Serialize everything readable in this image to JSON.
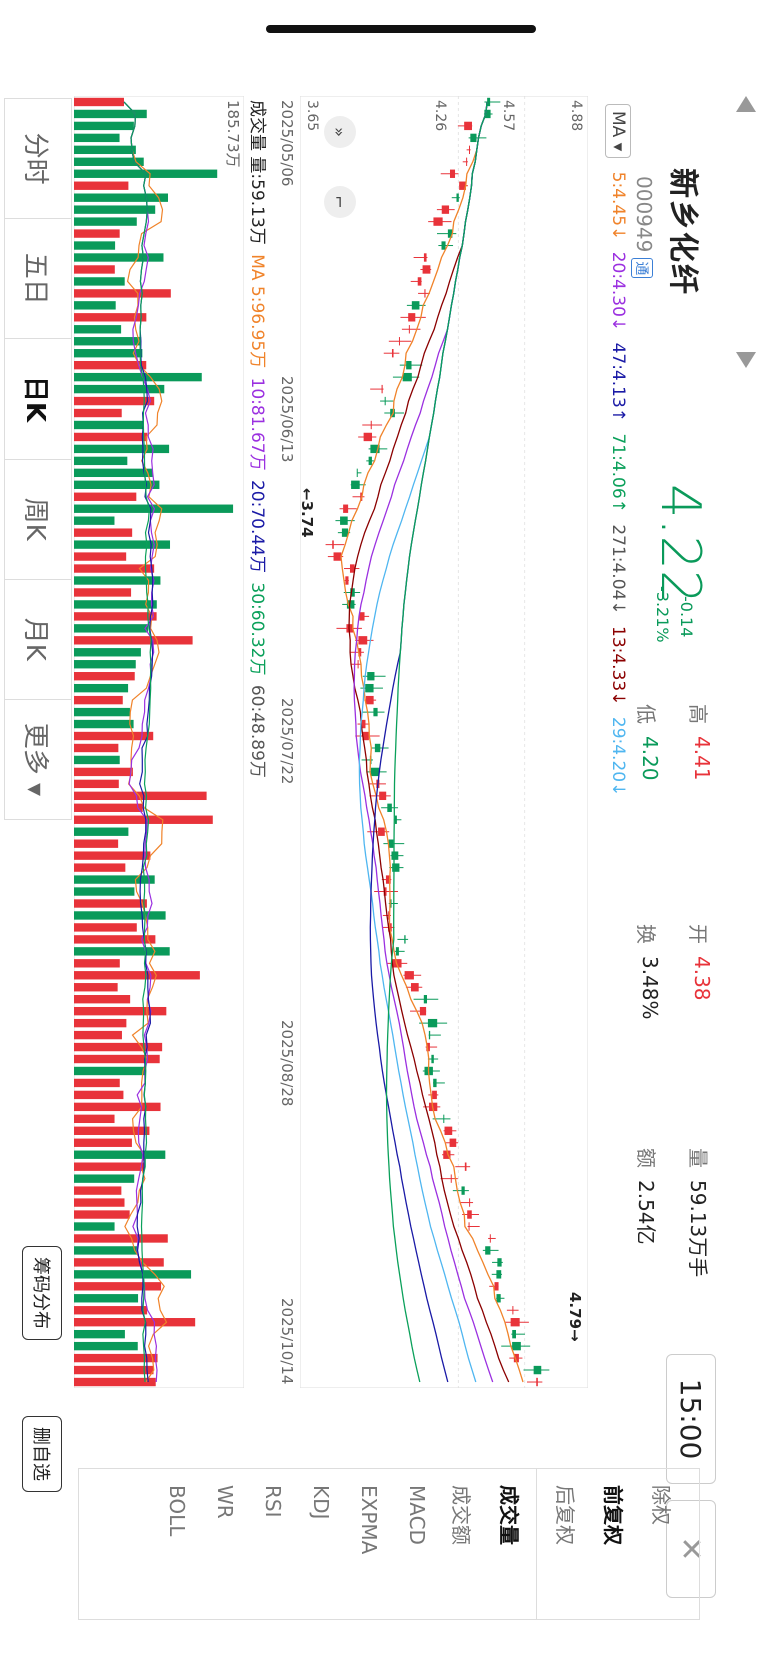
{
  "header": {
    "name": "新乡化纤",
    "code": "000949",
    "tong_badge": "通",
    "price": "4.22",
    "change": "-0.14",
    "change_pct": "-3.21%",
    "high_label": "高",
    "high": "4.41",
    "low_label": "低",
    "low": "4.20",
    "open_label": "开",
    "open": "4.38",
    "turnover_label": "换",
    "turnover": "3.48%",
    "volume_label": "量",
    "volume": "59.13万手",
    "amount_label": "额",
    "amount": "2.54亿",
    "time": "15:00"
  },
  "colors": {
    "up": "#e8333a",
    "down": "#0a9a5a",
    "ma5": "#f0832a",
    "ma20": "#9b30e0",
    "ma47": "#1a1aa6",
    "ma71": "#0aa05a",
    "ma271": "#555555",
    "ma13": "#8b0000",
    "ma29": "#4fb6f0"
  },
  "ma_legend": {
    "ma_button": "MA",
    "ma5": "5:4.45↓",
    "ma20": "20:4.30↓",
    "ma47": "47:4.13↑",
    "ma71": "71:4.06↑",
    "ma271": "271:4.04↓",
    "ma13": "13:4.33↓",
    "ma29": "29:4.20↓"
  },
  "vol_legend": {
    "label": "成交量",
    "vol": "量:59.13万",
    "ma5": "MA 5:96.95万",
    "ma10": "10:81.67万",
    "ma20": "20:70.44万",
    "ma30": "30:60.32万",
    "ma60": "60:48.89万"
  },
  "axes": {
    "y_labels": [
      "4.88",
      "4.57",
      "4.26",
      "3.65"
    ],
    "dates": [
      "2025/05/06",
      "2025/06/13",
      "2025/07/22",
      "2025/08/28",
      "2025/10/14"
    ],
    "vol_max": "185.73万"
  },
  "annotations": {
    "low_mark": "←3.74",
    "high_mark": "4.79→"
  },
  "tabs": [
    "分时",
    "五日",
    "日K",
    "周K",
    "月K",
    "更多 ▾"
  ],
  "right_panel": [
    "除权",
    "前复权",
    "后复权",
    "成交量",
    "成交额",
    "MACD",
    "EXPMA",
    "KDJ",
    "RSI",
    "WR",
    "BOLL"
  ],
  "buttons": {
    "chips": "筹码分布",
    "remove": "删自选",
    "close": "✕"
  },
  "icons": {
    "collapse": "double-chevron-icon",
    "shrink": "shrink-icon",
    "prev": "triangle-left-icon",
    "next": "triangle-right-icon"
  },
  "chart_data": {
    "type": "candlestick",
    "x": [
      "2025/05/06",
      "2025/06/13",
      "2025/07/22",
      "2025/08/28",
      "2025/10/14"
    ],
    "ylim": [
      3.65,
      4.88
    ],
    "low": 3.74,
    "high": 4.79
  }
}
